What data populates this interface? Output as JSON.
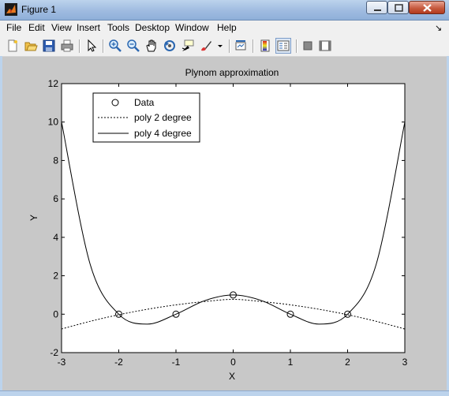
{
  "window": {
    "title": "Figure 1"
  },
  "menu": [
    "File",
    "Edit",
    "View",
    "Insert",
    "Tools",
    "Desktop",
    "Window",
    "Help"
  ],
  "toolbar_icons": [
    "new-figure-icon",
    "open-file-icon",
    "save-icon",
    "print-icon",
    "edit-plot-arrow-icon",
    "zoom-in-icon",
    "zoom-out-icon",
    "pan-hand-icon",
    "rotate-3d-icon",
    "data-cursor-icon",
    "brush-icon",
    "link-plot-icon",
    "insert-colorbar-icon",
    "insert-legend-icon",
    "hide-plot-tools-icon",
    "show-plot-tools-icon"
  ],
  "chart_data": {
    "type": "line",
    "title": "Plynom approximation",
    "xlabel": "X",
    "ylabel": "Y",
    "xlim": [
      -3,
      3
    ],
    "ylim": [
      -2,
      12
    ],
    "xticks": [
      "-3",
      "-2",
      "-1",
      "0",
      "1",
      "2",
      "3"
    ],
    "yticks": [
      "-2",
      "0",
      "2",
      "4",
      "6",
      "8",
      "10",
      "12"
    ],
    "grid": false,
    "legend_position": "top-left",
    "series": [
      {
        "name": "Data",
        "style": "markers-circle",
        "x": [
          -2,
          -1,
          0,
          1,
          2
        ],
        "y": [
          0,
          0,
          1,
          0,
          0
        ]
      },
      {
        "name": "poly 2 degree",
        "style": "dashed",
        "x": [
          -3,
          -2.5,
          -2,
          -1.5,
          -1,
          -0.5,
          0,
          0.5,
          1,
          1.5,
          2,
          2.5,
          3
        ],
        "y": [
          -0.771,
          -0.371,
          -0.029,
          0.257,
          0.486,
          0.657,
          0.771,
          0.657,
          0.486,
          0.257,
          -0.029,
          -0.371,
          -0.771
        ]
      },
      {
        "name": "poly 4 degree",
        "style": "solid",
        "x": [
          -3,
          -2.5,
          -2,
          -1.5,
          -1,
          -0.5,
          0,
          0.5,
          1,
          1.5,
          2,
          2.5,
          3
        ],
        "y": [
          10,
          2.6,
          0,
          -0.516,
          0,
          0.703,
          1,
          0.703,
          0,
          -0.516,
          0,
          2.6,
          10
        ]
      }
    ]
  }
}
